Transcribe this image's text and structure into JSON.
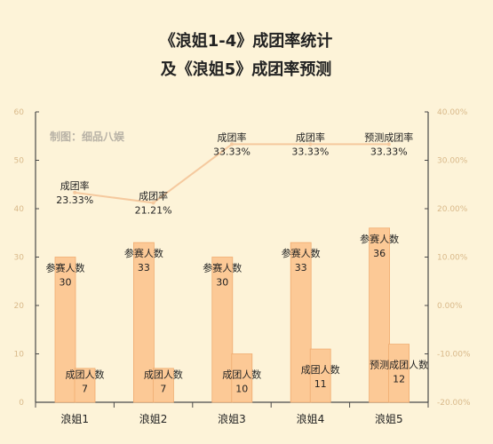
{
  "chart_data": {
    "type": "bar",
    "title_line1": "《浪姐1-4》成团率统计",
    "title_line2": "及《浪姐5》成团率预测",
    "watermark": "制图：细品八娱",
    "categories": [
      "浪姐1",
      "浪姐2",
      "浪姐3",
      "浪姐4",
      "浪姐5"
    ],
    "series": [
      {
        "name": "参赛人数",
        "values": [
          30,
          33,
          30,
          33,
          36
        ],
        "labels": [
          "参赛人数",
          "参赛人数",
          "参赛人数",
          "参赛人数",
          "参赛人数"
        ]
      },
      {
        "name": "成团人数",
        "values": [
          7,
          7,
          10,
          11,
          12
        ],
        "labels": [
          "成团人数",
          "成团人数",
          "成团人数",
          "成团人数",
          "预测成团人数"
        ]
      }
    ],
    "rate": {
      "values": [
        23.33,
        21.21,
        33.33,
        33.33,
        33.33
      ],
      "value_labels": [
        "23.33%",
        "21.21%",
        "33.33%",
        "33.33%",
        "33.33%"
      ],
      "labels": [
        "成团率",
        "成团率",
        "成团率",
        "成团率",
        "预测成团率"
      ]
    },
    "y_left": {
      "min": 0,
      "max": 60,
      "ticks": [
        "0",
        "10",
        "20",
        "30",
        "40",
        "50",
        "60"
      ]
    },
    "y_right": {
      "min": -20,
      "max": 40,
      "ticks": [
        "-20.00%",
        "-10.00%",
        "0.00%",
        "10.00%",
        "20.00%",
        "30.00%",
        "40.00%"
      ]
    },
    "colors": {
      "bar": "#fcc996",
      "bar_stroke": "#f0ac70",
      "line": "#f5c99e",
      "axis": "#4a4a4a",
      "tick": "#d9b98a"
    }
  }
}
